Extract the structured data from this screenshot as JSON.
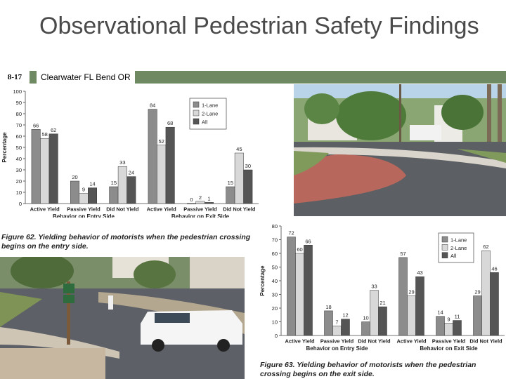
{
  "slide": {
    "title": "Observational Pedestrian Safety Findings",
    "number": "8-17",
    "locations": "Clearwater FL  Bend OR"
  },
  "chart_data": [
    {
      "type": "bar",
      "caption": "Figure 62. Yielding behavior of motorists when the pedestrian crossing begins on the entry side.",
      "ylabel": "Percentage",
      "ylim": [
        0,
        100
      ],
      "yticks": [
        0,
        10,
        20,
        30,
        40,
        50,
        60,
        70,
        80,
        90,
        100
      ],
      "categories": [
        "Active Yield",
        "Passive Yield",
        "Did Not Yield",
        "Active Yield",
        "Passive Yield",
        "Did Not Yield"
      ],
      "groups": [
        "Behavior on Entry Side",
        "Behavior on Exit Side"
      ],
      "legend_position": "top-right",
      "series": [
        {
          "name": "1-Lane",
          "color": "#8c8c8c",
          "values": [
            66,
            20,
            15,
            84,
            0,
            15
          ]
        },
        {
          "name": "2-Lane",
          "color": "#d8d8d8",
          "values": [
            58,
            9,
            33,
            52,
            2,
            45
          ]
        },
        {
          "name": "All",
          "color": "#555555",
          "values": [
            62,
            14,
            24,
            68,
            1,
            30
          ]
        }
      ]
    },
    {
      "type": "bar",
      "caption": "Figure 63. Yielding behavior of motorists when the pedestrian crossing begins on the exit side.",
      "ylabel": "Percentage",
      "ylim": [
        0,
        80
      ],
      "yticks": [
        0,
        10,
        20,
        30,
        40,
        50,
        60,
        70,
        80
      ],
      "categories": [
        "Active Yield",
        "Passive Yield",
        "Did Not Yield",
        "Active Yield",
        "Passive Yield",
        "Did Not Yield"
      ],
      "groups": [
        "Behavior on Entry Side",
        "Behavior on Exit Side"
      ],
      "legend_position": "top-right",
      "series": [
        {
          "name": "1-Lane",
          "color": "#8c8c8c",
          "values": [
            72,
            18,
            10,
            57,
            14,
            29
          ]
        },
        {
          "name": "2-Lane",
          "color": "#d8d8d8",
          "values": [
            60,
            7,
            33,
            29,
            9,
            62
          ]
        },
        {
          "name": "All",
          "color": "#555555",
          "values": [
            66,
            12,
            21,
            43,
            11,
            46
          ]
        }
      ]
    }
  ]
}
